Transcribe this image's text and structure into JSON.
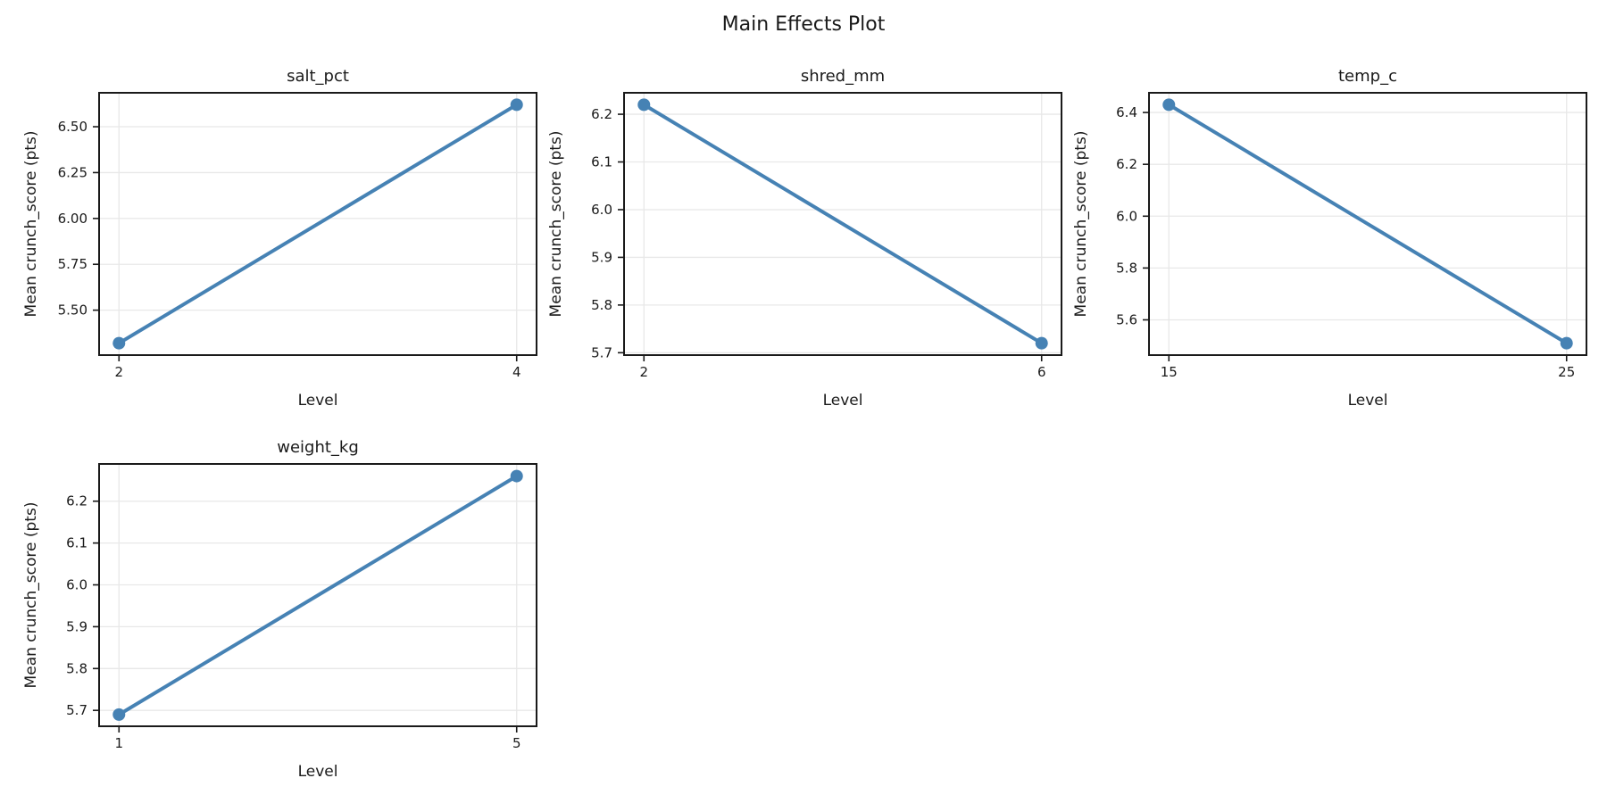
{
  "figure": {
    "title": "Main Effects Plot",
    "background_color": "#ffffff",
    "line_color": "#4682B4",
    "grid_color": "#e8e8e8",
    "spine_color": "#1a1a1a",
    "text_color": "#1a1a1a"
  },
  "chart_data": [
    {
      "type": "line",
      "title": "salt_pct",
      "xlabel": "Level",
      "ylabel": "Mean crunch_score (pts)",
      "x": [
        2,
        4
      ],
      "y": [
        5.32,
        6.62
      ],
      "xtick_labels": [
        "2",
        "4"
      ],
      "yticks": [
        5.5,
        5.75,
        6.0,
        6.25,
        6.5
      ],
      "ytick_labels": [
        "5.50",
        "5.75",
        "6.00",
        "6.25",
        "6.50"
      ],
      "xlim": [
        1.9,
        4.1
      ],
      "ylim": [
        5.255,
        6.685
      ],
      "grid": true,
      "marker": "circle",
      "row": 0,
      "col": 0
    },
    {
      "type": "line",
      "title": "shred_mm",
      "xlabel": "Level",
      "ylabel": "Mean crunch_score (pts)",
      "x": [
        2,
        6
      ],
      "y": [
        6.22,
        5.72
      ],
      "xtick_labels": [
        "2",
        "6"
      ],
      "yticks": [
        5.7,
        5.8,
        5.9,
        6.0,
        6.1,
        6.2
      ],
      "ytick_labels": [
        "5.7",
        "5.8",
        "5.9",
        "6.0",
        "6.1",
        "6.2"
      ],
      "xlim": [
        1.8,
        6.2
      ],
      "ylim": [
        5.695,
        6.245
      ],
      "grid": true,
      "marker": "circle",
      "row": 0,
      "col": 1
    },
    {
      "type": "line",
      "title": "temp_c",
      "xlabel": "Level",
      "ylabel": "Mean crunch_score (pts)",
      "x": [
        15,
        25
      ],
      "y": [
        6.43,
        5.51
      ],
      "xtick_labels": [
        "15",
        "25"
      ],
      "yticks": [
        5.6,
        5.8,
        6.0,
        6.2,
        6.4
      ],
      "ytick_labels": [
        "5.6",
        "5.8",
        "6.0",
        "6.2",
        "6.4"
      ],
      "xlim": [
        14.5,
        25.5
      ],
      "ylim": [
        5.464,
        6.476
      ],
      "grid": true,
      "marker": "circle",
      "row": 0,
      "col": 2
    },
    {
      "type": "line",
      "title": "weight_kg",
      "xlabel": "Level",
      "ylabel": "Mean crunch_score (pts)",
      "x": [
        1,
        5
      ],
      "y": [
        5.69,
        6.26
      ],
      "xtick_labels": [
        "1",
        "5"
      ],
      "yticks": [
        5.7,
        5.8,
        5.9,
        6.0,
        6.1,
        6.2
      ],
      "ytick_labels": [
        "5.7",
        "5.8",
        "5.9",
        "6.0",
        "6.1",
        "6.2"
      ],
      "xlim": [
        0.8,
        5.2
      ],
      "ylim": [
        5.662,
        6.289
      ],
      "grid": true,
      "marker": "circle",
      "row": 1,
      "col": 0
    }
  ]
}
